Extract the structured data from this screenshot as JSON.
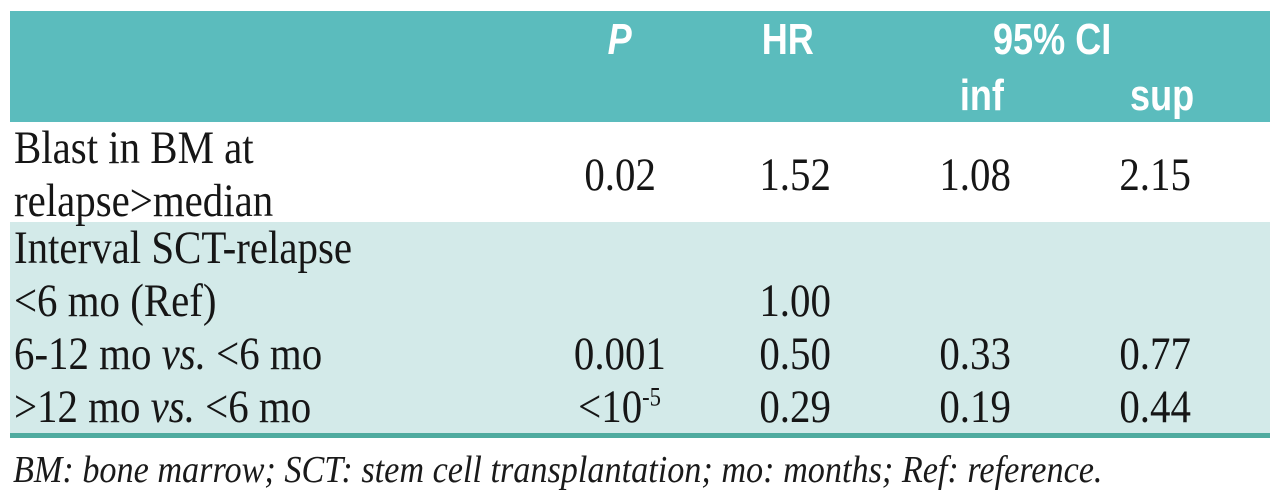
{
  "palette": {
    "header_bg": "#5bbcbd",
    "band_bg": "#d3eae9",
    "rule_color": "#4fab9f",
    "header_text": "#ffffff",
    "body_text": "#161616"
  },
  "header": {
    "p": "P",
    "hr": "HR",
    "ci": "95% CI",
    "ci_inf": "inf",
    "ci_sup": "sup"
  },
  "rows": {
    "blast": {
      "label": "Blast in BM at relapse>median",
      "p": "0.02",
      "hr": "1.52",
      "inf": "1.08",
      "sup": "2.15"
    },
    "interval_group": {
      "label": "Interval SCT-relapse"
    },
    "ref": {
      "label": "<6 mo (Ref)",
      "hr": "1.00"
    },
    "mid": {
      "label_pre": "6-12 mo ",
      "label_vs": "vs.",
      "label_post": " <6 mo",
      "p": "0.001",
      "hr": "0.50",
      "inf": "0.33",
      "sup": "0.77"
    },
    "late": {
      "label_pre": ">12 mo ",
      "label_vs": "vs.",
      "label_post": " <6 mo",
      "p_base": "<10",
      "p_exp": "-5",
      "hr": "0.29",
      "inf": "0.19",
      "sup": "0.44"
    }
  },
  "footnote": "BM: bone marrow; SCT: stem cell transplantation; mo: months; Ref: reference."
}
